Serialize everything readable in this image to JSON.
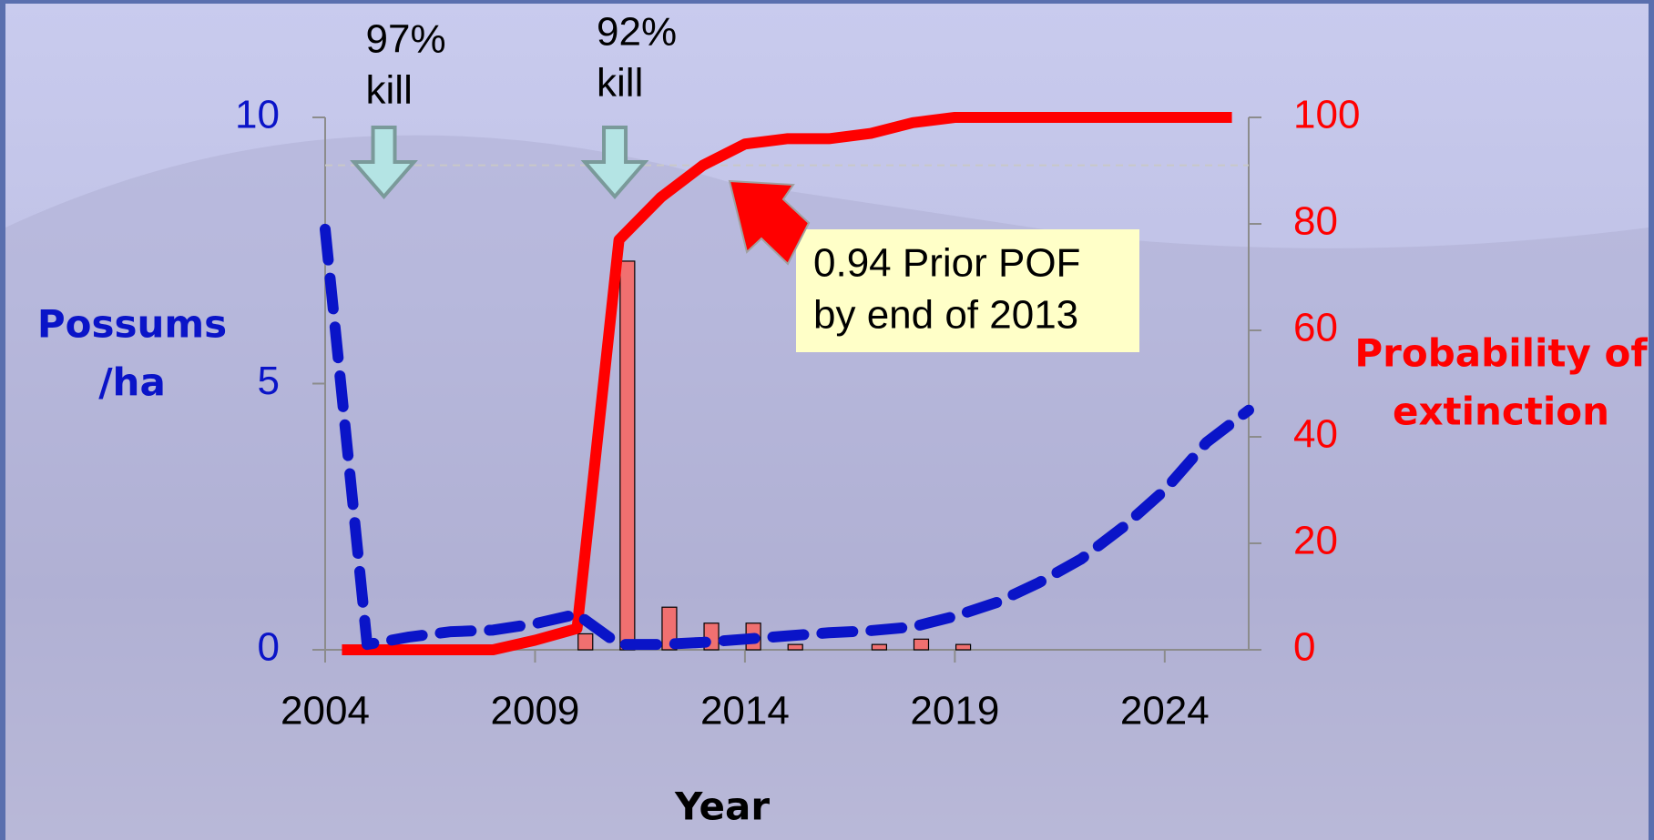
{
  "chart_data": {
    "type": "combo",
    "x_label": "Year",
    "y_label": [
      "Possums",
      "/ha"
    ],
    "y2_label": [
      "Probability of",
      "extinction"
    ],
    "xlim": [
      2004,
      2026
    ],
    "xticks": [
      2004,
      2009,
      2014,
      2019,
      2024
    ],
    "ylim": [
      0,
      10
    ],
    "yticks": [
      0,
      5,
      10
    ],
    "y2lim": [
      0,
      100
    ],
    "y2ticks": [
      0,
      20,
      40,
      60,
      80,
      100
    ],
    "series": [
      {
        "type": "line",
        "dashed": true,
        "color": "#0a14c8",
        "axis": "y",
        "x": [
          2004,
          2005,
          2006,
          2007,
          2008,
          2009,
          2010,
          2011,
          2012,
          2013,
          2014,
          2015,
          2016,
          2017,
          2018,
          2019,
          2020,
          2021,
          2022,
          2023,
          2024,
          2025,
          2026
        ],
        "values": [
          7.9,
          0.1,
          0.24,
          0.34,
          0.37,
          0.49,
          0.67,
          0.1,
          0.1,
          0.14,
          0.2,
          0.26,
          0.32,
          0.36,
          0.43,
          0.63,
          0.89,
          1.26,
          1.7,
          2.3,
          3.0,
          3.9,
          4.5
        ]
      },
      {
        "type": "line",
        "dashed": false,
        "color": "#ff0000",
        "axis": "y2",
        "x": [
          2004.4,
          2005,
          2006,
          2007,
          2008,
          2009,
          2010,
          2011,
          2012,
          2013,
          2014,
          2015,
          2016,
          2017,
          2018,
          2019,
          2020,
          2021,
          2022,
          2023,
          2024,
          2025,
          2025.6
        ],
        "values": [
          0,
          0,
          0,
          0,
          0,
          1.8,
          4,
          77,
          85,
          91,
          95,
          96,
          96,
          97,
          99,
          100,
          100,
          100,
          100,
          100,
          100,
          100,
          100
        ]
      },
      {
        "type": "bar",
        "color": "#f07070",
        "axis": "y2",
        "x": [
          2010.2,
          2011.2,
          2012.2,
          2013.2,
          2014.2,
          2015.2,
          2017.2,
          2018.2,
          2019.2
        ],
        "values": [
          3,
          73,
          8,
          5,
          5,
          1,
          1,
          2,
          1
        ]
      }
    ],
    "reference_line": {
      "axis": "y2",
      "value": 91
    },
    "annotations": [
      {
        "text": [
          "97%",
          "kill"
        ],
        "x": 2005.4
      },
      {
        "text": [
          "92%",
          "kill"
        ],
        "x": 2010.9
      }
    ],
    "callout": [
      "0.94 Prior POF",
      "by end of 2013"
    ]
  }
}
